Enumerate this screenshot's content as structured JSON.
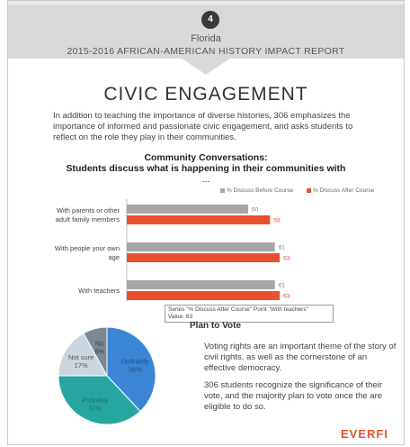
{
  "page": {
    "number": "4"
  },
  "header": {
    "state": "Florida",
    "report_title": "2015-2016 AFRICAN-AMERICAN HISTORY IMPACT REPORT"
  },
  "section": {
    "title": "CIVIC ENGAGEMENT",
    "intro": "In addition to teaching the importance of diverse histories, 306 emphasizes the importance of informed and passionate civic engagement, and asks students to reflect on the role they play in their communities."
  },
  "colors": {
    "before": "#a6a6a6",
    "after": "#e8502e",
    "brand": "#e8502e"
  },
  "chart_data": [
    {
      "type": "bar",
      "orientation": "horizontal",
      "title": "Community Conversations:",
      "subtitle": "Students discuss what is happening in their communities with",
      "subtitle2": "...",
      "categories": [
        "With parents or other adult family members",
        "With people your own age",
        "With teachers"
      ],
      "series": [
        {
          "name": "% Discuss Before Course",
          "values": [
            50,
            61,
            61
          ]
        },
        {
          "name": "% Discuss After Course",
          "values": [
            59,
            63,
            63
          ]
        }
      ],
      "legend_position": "top-right",
      "grid": false
    },
    {
      "type": "pie",
      "labels": [
        "Definitely",
        "Probably",
        "Not sure",
        "No"
      ],
      "values": [
        38,
        37,
        17,
        8
      ],
      "value_labels": [
        "38%",
        "37%",
        "17%",
        "8%"
      ],
      "colors": [
        "#3c86d6",
        "#27a6a0",
        "#cbd6df",
        "#7b8896"
      ]
    }
  ],
  "tooltip": {
    "line1": "Series \"% Discuss After Course\" Point \"With teachers\"",
    "line2": "Value: 63"
  },
  "vote": {
    "title": "Plan to Vote",
    "paragraph1": "Voting rights are an important theme of the story of civil rights, as well as the cornerstone of an effective democracy.",
    "paragraph2": "306 students recognize the significance of their vote, and the majority plan to vote once the are eligible to do so."
  },
  "brand": {
    "logo": "EVERFI"
  }
}
